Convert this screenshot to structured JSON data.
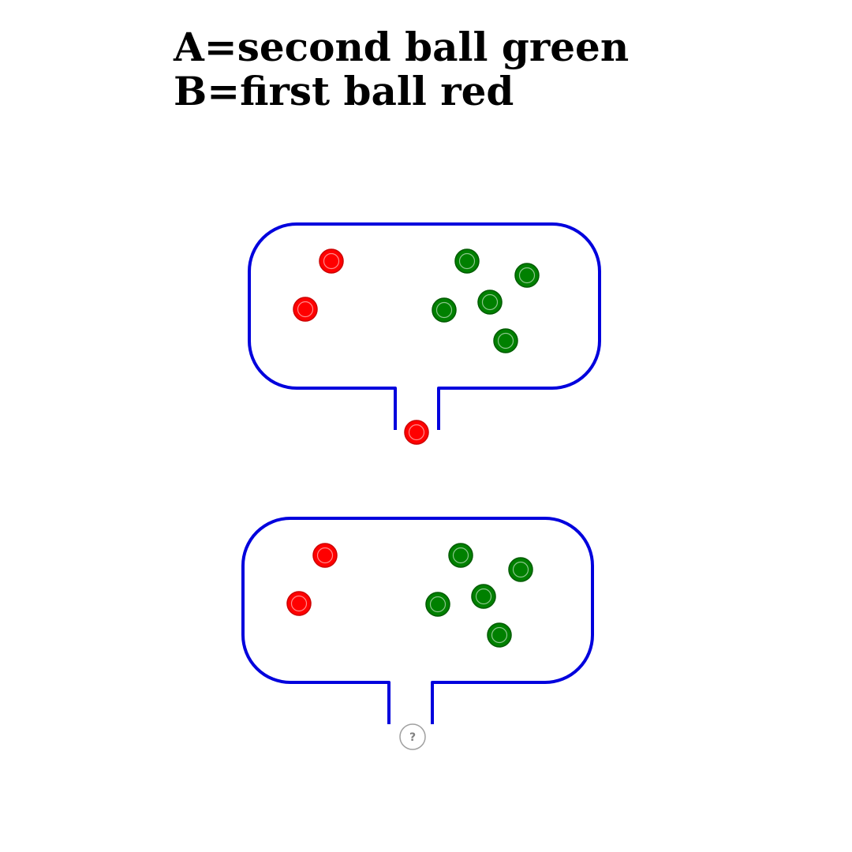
{
  "labels": {
    "a": "A=second ball green",
    "b": "B=first ball red"
  },
  "colors": {
    "outline": "#0000dd",
    "red": "#ff0000",
    "green": "#008000",
    "unknown": "#a0a0a0"
  },
  "containers": [
    {
      "name": "container-first-draw",
      "balls": [
        "red",
        "red",
        "green",
        "green",
        "green",
        "green",
        "green"
      ],
      "output": "red"
    },
    {
      "name": "container-second-draw",
      "balls": [
        "red",
        "red",
        "green",
        "green",
        "green",
        "green",
        "green"
      ],
      "output": "unknown",
      "output_symbol": "?"
    }
  ]
}
